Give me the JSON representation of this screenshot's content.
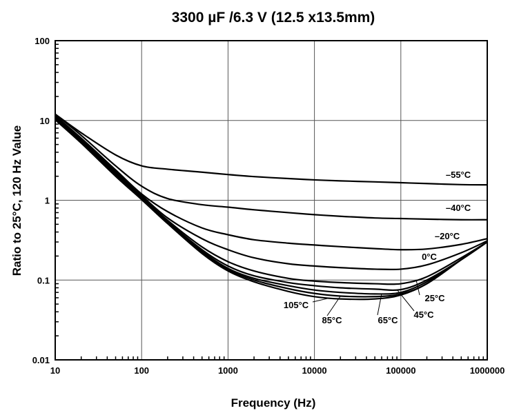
{
  "chart_data": {
    "type": "line",
    "title": "3300 µF /6.3 V  (12.5 x13.5mm)",
    "xlabel": "Frequency (Hz)",
    "ylabel": "Ratio to 25°C, 120 Hz Value",
    "xscale": "log",
    "yscale": "log",
    "xlim": [
      10,
      1000000
    ],
    "ylim": [
      0.01,
      100
    ],
    "x_ticks": [
      "10",
      "100",
      "1000",
      "10000",
      "100000",
      "1000000"
    ],
    "y_ticks": [
      "0.01",
      "0.1",
      "1",
      "10",
      "100"
    ],
    "grid": true,
    "line_color": "#000000",
    "grid_color": "#555555",
    "series": [
      {
        "name": "–55°C",
        "x": [
          10,
          20,
          50,
          100,
          200,
          500,
          1000,
          2000,
          5000,
          10000,
          20000,
          50000,
          100000,
          200000,
          500000,
          1000000
        ],
        "values": [
          12,
          7.0,
          3.7,
          2.7,
          2.45,
          2.25,
          2.1,
          1.98,
          1.87,
          1.8,
          1.75,
          1.7,
          1.66,
          1.62,
          1.57,
          1.56
        ]
      },
      {
        "name": "–40°C",
        "x": [
          10,
          20,
          50,
          100,
          200,
          500,
          1000,
          2000,
          5000,
          10000,
          20000,
          50000,
          100000,
          200000,
          500000,
          1000000
        ],
        "values": [
          12,
          6.5,
          2.7,
          1.5,
          1.05,
          0.88,
          0.82,
          0.76,
          0.7,
          0.66,
          0.63,
          0.6,
          0.59,
          0.58,
          0.57,
          0.57
        ]
      },
      {
        "name": "–20°C",
        "x": [
          10,
          20,
          50,
          100,
          200,
          500,
          1000,
          2000,
          5000,
          10000,
          20000,
          50000,
          100000,
          200000,
          500000,
          1000000
        ],
        "values": [
          11.5,
          6.0,
          2.4,
          1.2,
          0.72,
          0.45,
          0.37,
          0.32,
          0.29,
          0.275,
          0.262,
          0.248,
          0.24,
          0.245,
          0.28,
          0.33
        ]
      },
      {
        "name": "0°C",
        "x": [
          10,
          20,
          50,
          100,
          200,
          500,
          1000,
          2000,
          5000,
          10000,
          20000,
          50000,
          100000,
          200000,
          500000,
          1000000
        ],
        "values": [
          11.2,
          5.8,
          2.3,
          1.15,
          0.6,
          0.33,
          0.24,
          0.19,
          0.16,
          0.15,
          0.143,
          0.137,
          0.137,
          0.155,
          0.22,
          0.31
        ]
      },
      {
        "name": "25°C",
        "x": [
          10,
          20,
          50,
          100,
          200,
          500,
          1000,
          2000,
          5000,
          10000,
          20000,
          50000,
          100000,
          200000,
          500000,
          1000000
        ],
        "values": [
          11,
          5.6,
          2.2,
          1.1,
          0.56,
          0.26,
          0.17,
          0.13,
          0.105,
          0.097,
          0.093,
          0.09,
          0.09,
          0.11,
          0.19,
          0.3
        ]
      },
      {
        "name": "45°C",
        "x": [
          10,
          20,
          50,
          100,
          200,
          500,
          1000,
          2000,
          5000,
          10000,
          20000,
          50000,
          100000,
          200000,
          500000,
          1000000
        ],
        "values": [
          10.8,
          5.5,
          2.15,
          1.08,
          0.54,
          0.24,
          0.15,
          0.113,
          0.093,
          0.085,
          0.08,
          0.077,
          0.076,
          0.1,
          0.18,
          0.3
        ]
      },
      {
        "name": "65°C",
        "x": [
          10,
          20,
          50,
          100,
          200,
          500,
          1000,
          2000,
          5000,
          10000,
          20000,
          50000,
          100000,
          200000,
          500000,
          1000000
        ],
        "values": [
          10.6,
          5.4,
          2.1,
          1.06,
          0.53,
          0.23,
          0.14,
          0.105,
          0.085,
          0.075,
          0.07,
          0.067,
          0.07,
          0.095,
          0.18,
          0.3
        ]
      },
      {
        "name": "85°C",
        "x": [
          10,
          20,
          50,
          100,
          200,
          500,
          1000,
          2000,
          5000,
          10000,
          20000,
          50000,
          100000,
          200000,
          500000,
          1000000
        ],
        "values": [
          10.4,
          5.3,
          2.05,
          1.04,
          0.52,
          0.22,
          0.135,
          0.1,
          0.078,
          0.068,
          0.063,
          0.062,
          0.067,
          0.09,
          0.18,
          0.3
        ]
      },
      {
        "name": "105°C",
        "x": [
          10,
          20,
          50,
          100,
          200,
          500,
          1000,
          2000,
          5000,
          10000,
          20000,
          50000,
          100000,
          200000,
          500000,
          1000000
        ],
        "values": [
          10.2,
          5.2,
          2.0,
          1.02,
          0.51,
          0.215,
          0.13,
          0.095,
          0.072,
          0.062,
          0.058,
          0.058,
          0.065,
          0.09,
          0.18,
          0.3
        ]
      }
    ]
  }
}
